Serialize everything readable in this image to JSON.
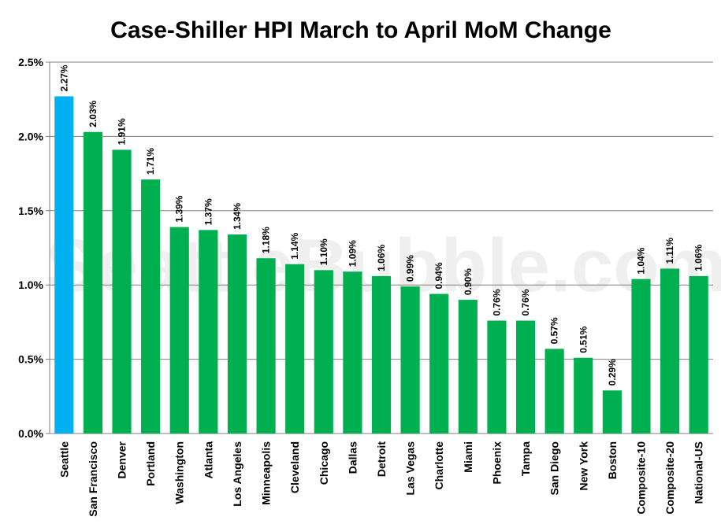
{
  "chart_data": {
    "type": "bar",
    "title": "Case-Shiller HPI March to April MoM Change",
    "watermark": "SeattleBubble.com",
    "categories": [
      "Seattle",
      "San Francisco",
      "Denver",
      "Portland",
      "Washington",
      "Atlanta",
      "Los Angeles",
      "Minneapolis",
      "Cleveland",
      "Chicago",
      "Dallas",
      "Detroit",
      "Las Vegas",
      "Charlotte",
      "Miami",
      "Phoenix",
      "Tampa",
      "San Diego",
      "New York",
      "Boston",
      "Composite-10",
      "Composite-20",
      "National-US"
    ],
    "values": [
      2.27,
      2.03,
      1.91,
      1.71,
      1.39,
      1.37,
      1.34,
      1.18,
      1.14,
      1.1,
      1.09,
      1.06,
      0.99,
      0.94,
      0.9,
      0.76,
      0.76,
      0.57,
      0.51,
      0.29,
      1.04,
      1.11,
      1.06
    ],
    "value_labels": [
      "2.27%",
      "2.03%",
      "1.91%",
      "1.71%",
      "1.39%",
      "1.37%",
      "1.34%",
      "1.18%",
      "1.14%",
      "1.10%",
      "1.09%",
      "1.06%",
      "0.99%",
      "0.94%",
      "0.90%",
      "0.76%",
      "0.76%",
      "0.57%",
      "0.51%",
      "0.29%",
      "1.04%",
      "1.11%",
      "1.06%"
    ],
    "ylim": [
      0,
      2.5
    ],
    "yticks": [
      0,
      0.5,
      1.0,
      1.5,
      2.0,
      2.5
    ],
    "ytick_labels": [
      "0.0%",
      "0.5%",
      "1.0%",
      "1.5%",
      "2.0%",
      "2.5%"
    ],
    "xlabel": "",
    "ylabel": "",
    "grid": true,
    "highlight_category": "Seattle",
    "colors": {
      "bar": "#00b050",
      "highlight": "#00b0f0",
      "grid": "#808080"
    }
  }
}
